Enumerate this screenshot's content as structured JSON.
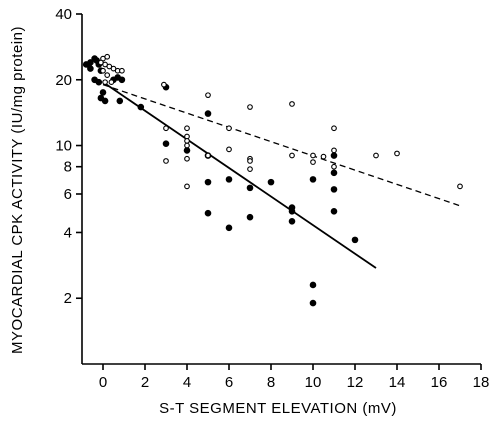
{
  "chart_data": {
    "type": "scatter",
    "xlabel": "S-T  SEGMENT  ELEVATION (mV)",
    "ylabel": "MYOCARDIAL CPK ACTIVITY (IU/mg protein)",
    "xlim": [
      -1,
      18
    ],
    "ylim": [
      1,
      40
    ],
    "yscale": "log",
    "xticks": [
      0,
      2,
      4,
      6,
      8,
      10,
      12,
      14,
      16,
      18
    ],
    "yticks": [
      2,
      4,
      6,
      8,
      10,
      20,
      40
    ],
    "grid": false,
    "series": [
      {
        "marker": "filled-circle",
        "points": [
          [
            -0.8,
            23.5
          ],
          [
            -0.6,
            24.0
          ],
          [
            -0.4,
            25.0
          ],
          [
            -0.2,
            23.5
          ],
          [
            -0.6,
            22.5
          ],
          [
            -0.3,
            24.5
          ],
          [
            -0.1,
            22.0
          ],
          [
            -0.4,
            20.0
          ],
          [
            -0.2,
            19.5
          ],
          [
            -0.1,
            16.5
          ],
          [
            0.1,
            16.0
          ],
          [
            0.0,
            17.5
          ],
          [
            0.5,
            20.0
          ],
          [
            0.7,
            20.5
          ],
          [
            0.9,
            20.0
          ],
          [
            0.8,
            16.0
          ],
          [
            1.8,
            15.0
          ],
          [
            3.0,
            18.5
          ],
          [
            3.0,
            10.2
          ],
          [
            4.0,
            9.5
          ],
          [
            5.0,
            14.0
          ],
          [
            5.0,
            9.0
          ],
          [
            5.0,
            6.8
          ],
          [
            5.0,
            4.9
          ],
          [
            6.0,
            7.0
          ],
          [
            6.0,
            4.2
          ],
          [
            7.0,
            6.4
          ],
          [
            7.0,
            4.7
          ],
          [
            8.0,
            6.8
          ],
          [
            9.0,
            5.2
          ],
          [
            9.0,
            5.0
          ],
          [
            9.0,
            4.5
          ],
          [
            10.0,
            7.0
          ],
          [
            10.0,
            2.3
          ],
          [
            10.0,
            1.9
          ],
          [
            11.0,
            9.0
          ],
          [
            11.0,
            7.5
          ],
          [
            11.0,
            6.3
          ],
          [
            11.0,
            5.0
          ],
          [
            12.0,
            3.7
          ]
        ]
      },
      {
        "marker": "open-circle",
        "points": [
          [
            0.0,
            25.0
          ],
          [
            0.2,
            25.5
          ],
          [
            -0.1,
            24.0
          ],
          [
            0.1,
            23.5
          ],
          [
            0.3,
            23.0
          ],
          [
            0.5,
            22.5
          ],
          [
            0.7,
            22.0
          ],
          [
            0.9,
            22.0
          ],
          [
            0.0,
            22.0
          ],
          [
            0.2,
            21.0
          ],
          [
            0.1,
            19.5
          ],
          [
            0.4,
            19.5
          ],
          [
            2.9,
            19.0
          ],
          [
            3.0,
            12.0
          ],
          [
            3.0,
            8.5
          ],
          [
            4.0,
            12.0
          ],
          [
            4.0,
            11.0
          ],
          [
            4.0,
            10.5
          ],
          [
            4.0,
            10.0
          ],
          [
            4.0,
            8.7
          ],
          [
            4.0,
            6.5
          ],
          [
            5.0,
            17.0
          ],
          [
            5.0,
            9.0
          ],
          [
            6.0,
            12.0
          ],
          [
            6.0,
            9.6
          ],
          [
            7.0,
            15.0
          ],
          [
            7.0,
            8.7
          ],
          [
            7.0,
            8.5
          ],
          [
            7.0,
            7.8
          ],
          [
            9.0,
            15.5
          ],
          [
            9.0,
            9.0
          ],
          [
            10.0,
            9.0
          ],
          [
            10.0,
            8.4
          ],
          [
            10.5,
            8.9
          ],
          [
            11.0,
            12.0
          ],
          [
            11.0,
            9.5
          ],
          [
            11.0,
            8.0
          ],
          [
            13.0,
            9.0
          ],
          [
            14.0,
            9.2
          ],
          [
            17.0,
            6.5
          ]
        ]
      }
    ],
    "lines": [
      {
        "style": "solid",
        "x": [
          0,
          13
        ],
        "y": [
          19.5,
          2.75
        ]
      },
      {
        "style": "dashed",
        "x": [
          0,
          17
        ],
        "y": [
          19.0,
          5.3
        ]
      }
    ]
  }
}
